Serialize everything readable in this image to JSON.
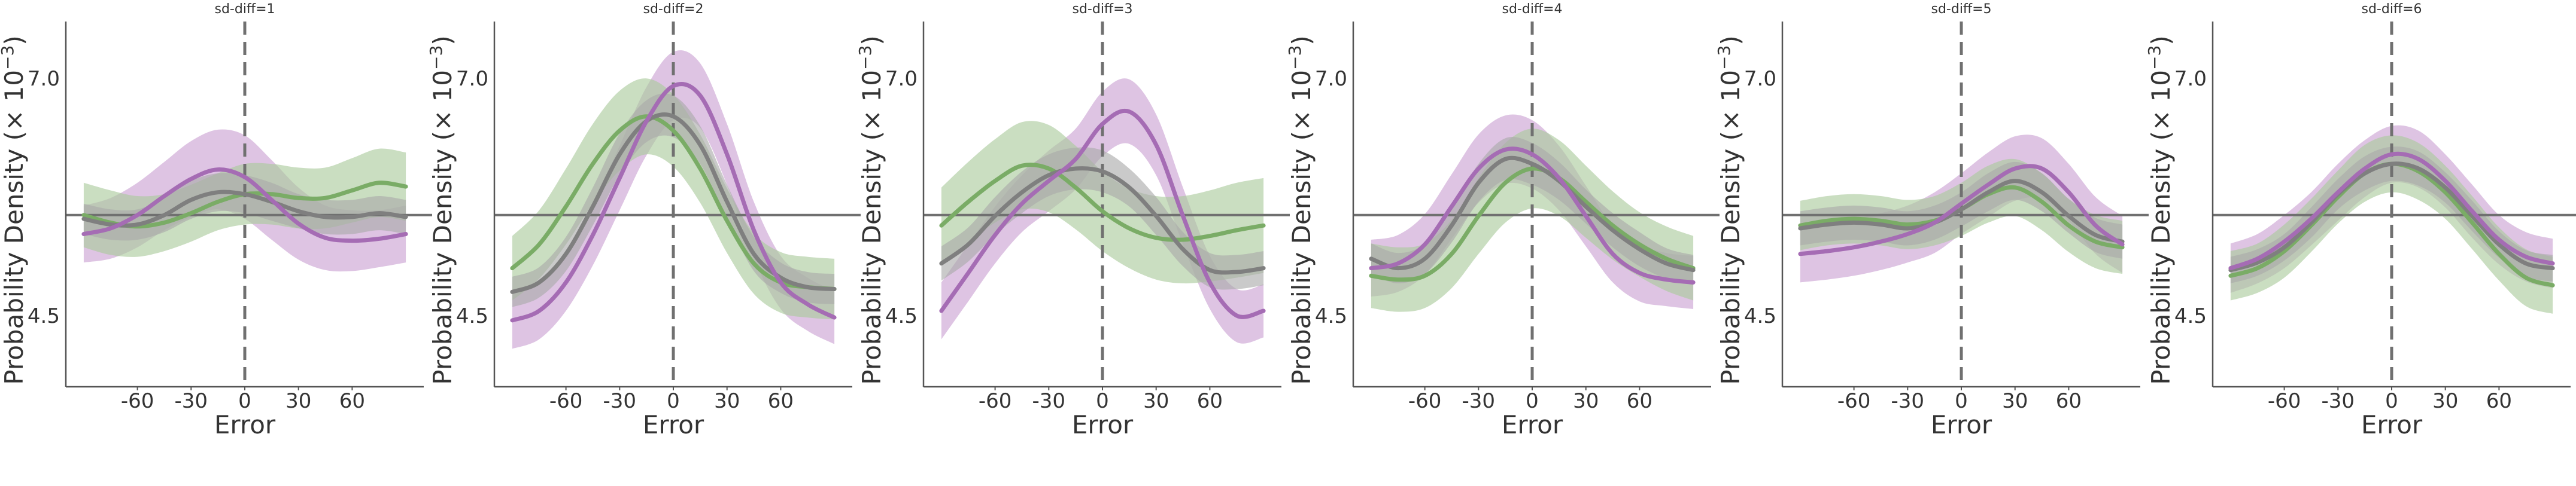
{
  "colors": {
    "purple": "#a56cb4",
    "green": "#7aac66",
    "gray": "#7f7f7f",
    "band_purple": "#c9a0d2",
    "band_green": "#a9c99b",
    "band_gray": "#a9a9a9",
    "axis": "#555555",
    "ref_line": "#707070"
  },
  "chart_data": [
    {
      "type": "line",
      "title": "sd-diff=1",
      "xlabel": "Error",
      "ylabel": "Probability Density (× 10",
      "ylabel_exp": "−3",
      "ylabel_close": ")",
      "xticks": [
        "-60",
        "-30",
        "0",
        "30",
        "60"
      ],
      "yticks": [
        "4.5",
        "7.0"
      ],
      "xlim": [
        -100,
        100
      ],
      "ylim": [
        3.75,
        7.6
      ],
      "reference_y": 5.56,
      "x": [
        -90,
        -75,
        -60,
        -45,
        -30,
        -15,
        0,
        15,
        30,
        45,
        60,
        75,
        90
      ],
      "series": [
        {
          "color": "purple",
          "values": [
            5.36,
            5.42,
            5.56,
            5.76,
            5.94,
            6.04,
            5.96,
            5.72,
            5.47,
            5.32,
            5.29,
            5.31,
            5.36
          ],
          "ci": [
            0.3,
            0.32,
            0.34,
            0.36,
            0.4,
            0.42,
            0.44,
            0.42,
            0.38,
            0.34,
            0.32,
            0.3,
            0.3
          ]
        },
        {
          "color": "green",
          "values": [
            5.56,
            5.48,
            5.44,
            5.48,
            5.58,
            5.7,
            5.78,
            5.78,
            5.74,
            5.74,
            5.82,
            5.9,
            5.86
          ],
          "ci": [
            0.34,
            0.34,
            0.32,
            0.3,
            0.3,
            0.3,
            0.32,
            0.32,
            0.32,
            0.32,
            0.34,
            0.36,
            0.36
          ]
        },
        {
          "color": "gray",
          "values": [
            5.52,
            5.46,
            5.46,
            5.56,
            5.72,
            5.8,
            5.78,
            5.7,
            5.6,
            5.54,
            5.54,
            5.58,
            5.54
          ],
          "ci": [
            0.16,
            0.16,
            0.16,
            0.18,
            0.2,
            0.2,
            0.2,
            0.2,
            0.18,
            0.18,
            0.18,
            0.18,
            0.18
          ]
        }
      ]
    },
    {
      "type": "line",
      "title": "sd-diff=2",
      "xlabel": "Error",
      "ylabel": "Probability Density (× 10",
      "ylabel_exp": "−3",
      "ylabel_close": ")",
      "xticks": [
        "-60",
        "-30",
        "0",
        "30",
        "60"
      ],
      "yticks": [
        "4.5",
        "7.0"
      ],
      "xlim": [
        -100,
        100
      ],
      "ylim": [
        3.75,
        7.6
      ],
      "reference_y": 5.56,
      "x": [
        -90,
        -75,
        -60,
        -45,
        -30,
        -15,
        0,
        15,
        30,
        45,
        60,
        75,
        90
      ],
      "series": [
        {
          "color": "purple",
          "values": [
            4.45,
            4.55,
            4.85,
            5.35,
            5.95,
            6.55,
            6.92,
            6.82,
            6.2,
            5.4,
            4.85,
            4.62,
            4.48
          ],
          "ci": [
            0.3,
            0.3,
            0.3,
            0.32,
            0.34,
            0.36,
            0.36,
            0.34,
            0.32,
            0.3,
            0.28,
            0.28,
            0.28
          ]
        },
        {
          "color": "green",
          "values": [
            5.0,
            5.25,
            5.65,
            6.1,
            6.45,
            6.6,
            6.45,
            6.05,
            5.5,
            5.05,
            4.85,
            4.8,
            4.78
          ],
          "ci": [
            0.34,
            0.36,
            0.4,
            0.42,
            0.42,
            0.4,
            0.38,
            0.36,
            0.34,
            0.32,
            0.32,
            0.32,
            0.32
          ]
        },
        {
          "color": "gray",
          "values": [
            4.75,
            4.85,
            5.15,
            5.65,
            6.2,
            6.55,
            6.6,
            6.3,
            5.7,
            5.15,
            4.9,
            4.8,
            4.78
          ],
          "ci": [
            0.16,
            0.16,
            0.18,
            0.2,
            0.22,
            0.22,
            0.22,
            0.2,
            0.18,
            0.18,
            0.16,
            0.16,
            0.16
          ]
        }
      ]
    },
    {
      "type": "line",
      "title": "sd-diff=3",
      "xlabel": "Error",
      "ylabel": "Probability Density (× 10",
      "ylabel_exp": "−3",
      "ylabel_close": ")",
      "xticks": [
        "-60",
        "-30",
        "0",
        "30",
        "60"
      ],
      "yticks": [
        "4.5",
        "7.0"
      ],
      "xlim": [
        -100,
        100
      ],
      "ylim": [
        3.75,
        7.6
      ],
      "reference_y": 5.56,
      "x": [
        -90,
        -75,
        -60,
        -45,
        -30,
        -15,
        0,
        15,
        30,
        45,
        60,
        75,
        90
      ],
      "series": [
        {
          "color": "purple",
          "values": [
            4.55,
            4.95,
            5.35,
            5.68,
            5.92,
            6.15,
            6.52,
            6.65,
            6.3,
            5.55,
            4.85,
            4.5,
            4.55
          ],
          "ci": [
            0.3,
            0.3,
            0.3,
            0.3,
            0.32,
            0.32,
            0.34,
            0.34,
            0.32,
            0.3,
            0.28,
            0.28,
            0.28
          ]
        },
        {
          "color": "green",
          "values": [
            5.45,
            5.7,
            5.92,
            6.08,
            6.05,
            5.85,
            5.6,
            5.42,
            5.32,
            5.3,
            5.34,
            5.4,
            5.45
          ],
          "ci": [
            0.4,
            0.42,
            0.44,
            0.46,
            0.46,
            0.44,
            0.42,
            0.42,
            0.44,
            0.46,
            0.48,
            0.5,
            0.5
          ]
        },
        {
          "color": "gray",
          "values": [
            5.05,
            5.25,
            5.55,
            5.8,
            5.98,
            6.05,
            6.02,
            5.85,
            5.55,
            5.2,
            4.98,
            4.96,
            5.0
          ],
          "ci": [
            0.18,
            0.18,
            0.2,
            0.22,
            0.22,
            0.22,
            0.22,
            0.2,
            0.2,
            0.18,
            0.18,
            0.18,
            0.18
          ]
        }
      ]
    },
    {
      "type": "line",
      "title": "sd-diff=4",
      "xlabel": "Error",
      "ylabel": "Probability Density (× 10",
      "ylabel_exp": "−3",
      "ylabel_close": ")",
      "xticks": [
        "-60",
        "-30",
        "0",
        "30",
        "60"
      ],
      "yticks": [
        "4.5",
        "7.0"
      ],
      "xlim": [
        -100,
        100
      ],
      "ylim": [
        3.75,
        7.6
      ],
      "reference_y": 5.56,
      "x": [
        -90,
        -75,
        -60,
        -45,
        -30,
        -15,
        0,
        15,
        30,
        45,
        60,
        75,
        90
      ],
      "series": [
        {
          "color": "purple",
          "values": [
            5.0,
            5.05,
            5.25,
            5.65,
            6.05,
            6.25,
            6.2,
            5.95,
            5.55,
            5.15,
            4.95,
            4.88,
            4.85
          ],
          "ci": [
            0.3,
            0.3,
            0.32,
            0.34,
            0.36,
            0.36,
            0.36,
            0.34,
            0.32,
            0.3,
            0.3,
            0.28,
            0.28
          ]
        },
        {
          "color": "green",
          "values": [
            4.92,
            4.88,
            4.92,
            5.15,
            5.55,
            5.9,
            6.05,
            5.95,
            5.7,
            5.45,
            5.25,
            5.1,
            5.0
          ],
          "ci": [
            0.34,
            0.34,
            0.34,
            0.36,
            0.4,
            0.42,
            0.42,
            0.4,
            0.38,
            0.36,
            0.34,
            0.34,
            0.34
          ]
        },
        {
          "color": "gray",
          "values": [
            5.1,
            5.0,
            5.1,
            5.45,
            5.9,
            6.15,
            6.1,
            5.92,
            5.65,
            5.4,
            5.2,
            5.05,
            4.98
          ],
          "ci": [
            0.16,
            0.16,
            0.16,
            0.18,
            0.2,
            0.22,
            0.22,
            0.2,
            0.18,
            0.18,
            0.18,
            0.16,
            0.16
          ]
        }
      ]
    },
    {
      "type": "line",
      "title": "sd-diff=5",
      "xlabel": "Error",
      "ylabel": "Probability Density (× 10",
      "ylabel_exp": "−3",
      "ylabel_close": ")",
      "xticks": [
        "-60",
        "-30",
        "0",
        "30",
        "60"
      ],
      "yticks": [
        "4.5",
        "7.0"
      ],
      "xlim": [
        -100,
        100
      ],
      "ylim": [
        3.75,
        7.6
      ],
      "reference_y": 5.56,
      "x": [
        -90,
        -75,
        -60,
        -45,
        -30,
        -15,
        0,
        15,
        30,
        45,
        60,
        75,
        90
      ],
      "series": [
        {
          "color": "purple",
          "values": [
            5.15,
            5.18,
            5.22,
            5.28,
            5.36,
            5.48,
            5.68,
            5.88,
            6.05,
            6.05,
            5.8,
            5.45,
            5.25
          ],
          "ci": [
            0.3,
            0.3,
            0.3,
            0.3,
            0.3,
            0.32,
            0.32,
            0.34,
            0.34,
            0.32,
            0.3,
            0.3,
            0.3
          ]
        },
        {
          "color": "green",
          "values": [
            5.45,
            5.5,
            5.52,
            5.5,
            5.46,
            5.5,
            5.62,
            5.78,
            5.85,
            5.7,
            5.45,
            5.28,
            5.22
          ],
          "ci": [
            0.26,
            0.26,
            0.26,
            0.26,
            0.26,
            0.26,
            0.28,
            0.3,
            0.3,
            0.3,
            0.28,
            0.28,
            0.28
          ]
        },
        {
          "color": "gray",
          "values": [
            5.42,
            5.46,
            5.48,
            5.46,
            5.42,
            5.48,
            5.62,
            5.8,
            5.92,
            5.8,
            5.55,
            5.35,
            5.28
          ],
          "ci": [
            0.18,
            0.18,
            0.18,
            0.18,
            0.18,
            0.18,
            0.18,
            0.2,
            0.2,
            0.2,
            0.18,
            0.18,
            0.18
          ]
        }
      ]
    },
    {
      "type": "line",
      "title": "sd-diff=6",
      "xlabel": "Error",
      "ylabel": "Probability Density (× 10",
      "ylabel_exp": "−3",
      "ylabel_close": ")",
      "xticks": [
        "-60",
        "-30",
        "0",
        "30",
        "60"
      ],
      "yticks": [
        "4.5",
        "7.0"
      ],
      "xlim": [
        -100,
        100
      ],
      "ylim": [
        3.75,
        7.6
      ],
      "reference_y": 5.56,
      "x": [
        -90,
        -75,
        -60,
        -45,
        -30,
        -15,
        0,
        15,
        30,
        45,
        60,
        75,
        90
      ],
      "series": [
        {
          "color": "purple",
          "values": [
            5.0,
            5.1,
            5.28,
            5.52,
            5.8,
            6.05,
            6.2,
            6.15,
            5.92,
            5.6,
            5.3,
            5.12,
            5.05
          ],
          "ci": [
            0.26,
            0.26,
            0.28,
            0.28,
            0.3,
            0.3,
            0.3,
            0.3,
            0.28,
            0.28,
            0.26,
            0.26,
            0.26
          ]
        },
        {
          "color": "green",
          "values": [
            4.92,
            5.0,
            5.18,
            5.45,
            5.75,
            6.0,
            6.1,
            6.02,
            5.8,
            5.48,
            5.15,
            4.9,
            4.82
          ],
          "ci": [
            0.26,
            0.26,
            0.28,
            0.28,
            0.28,
            0.3,
            0.3,
            0.3,
            0.28,
            0.28,
            0.28,
            0.3,
            0.3
          ]
        },
        {
          "color": "gray",
          "values": [
            4.98,
            5.06,
            5.22,
            5.48,
            5.78,
            6.0,
            6.1,
            6.05,
            5.85,
            5.55,
            5.25,
            5.05,
            5.0
          ],
          "ci": [
            0.14,
            0.14,
            0.14,
            0.16,
            0.16,
            0.18,
            0.18,
            0.18,
            0.16,
            0.16,
            0.14,
            0.14,
            0.14
          ]
        }
      ]
    }
  ]
}
